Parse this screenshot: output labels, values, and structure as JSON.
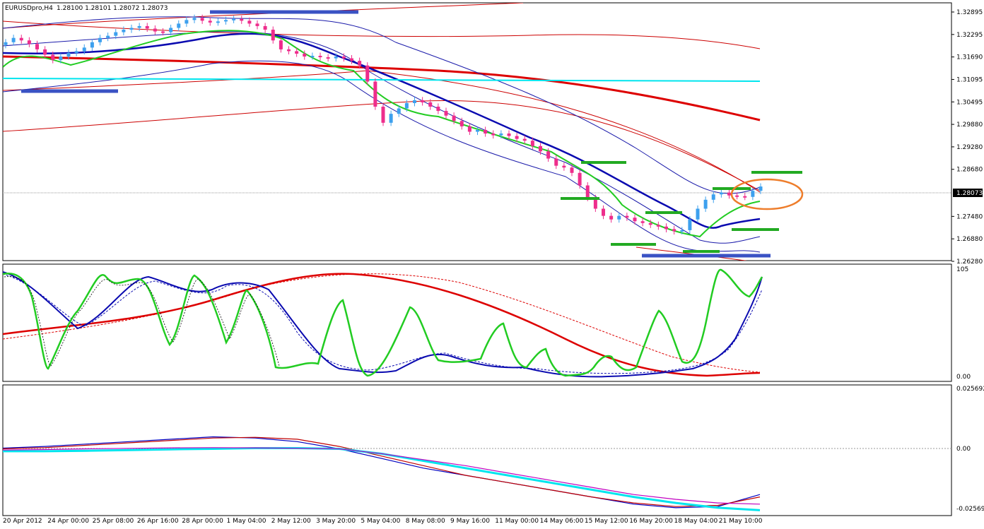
{
  "header": {
    "symbol_label": "EURUSDpro,H4",
    "ohlc": "1.28100 1.28101 1.28072 1.28073"
  },
  "chart_data": [
    {
      "type": "candlestick",
      "title": "EURUSDpro,H4",
      "ylim": [
        1.26,
        1.332
      ],
      "price_ticks": [
        "1.32895",
        "1.32295",
        "1.31690",
        "1.31095",
        "1.30495",
        "1.29880",
        "1.29280",
        "1.28680",
        "1.28073",
        "1.27480",
        "1.26880",
        "1.26280"
      ],
      "current_price": "1.28073",
      "x_labels": [
        "20 Apr 2012",
        "24 Apr 00:00",
        "25 Apr 08:00",
        "26 Apr 16:00",
        "28 Apr 00:00",
        "1 May 04:00",
        "2 May 12:00",
        "3 May 20:00",
        "5 May 04:00",
        "8 May 08:00",
        "9 May 16:00",
        "11 May 00:00",
        "14 May 06:00",
        "15 May 12:00",
        "16 May 20:00",
        "18 May 04:00",
        "21 May 10:00"
      ],
      "candle_closes": [
        1.321,
        1.3222,
        1.3215,
        1.3205,
        1.319,
        1.3175,
        1.316,
        1.317,
        1.318,
        1.3185,
        1.3195,
        1.321,
        1.3222,
        1.3228,
        1.3238,
        1.3245,
        1.325,
        1.3255,
        1.3248,
        1.324,
        1.3238,
        1.325,
        1.3262,
        1.3272,
        1.3278,
        1.327,
        1.3265,
        1.3268,
        1.3272,
        1.3275,
        1.327,
        1.3262,
        1.3255,
        1.3245,
        1.3215,
        1.319,
        1.3185,
        1.3178,
        1.317,
        1.3172,
        1.3168,
        1.3165,
        1.317,
        1.3165,
        1.3158,
        1.3145,
        1.31,
        1.303,
        1.2985,
        1.301,
        1.3025,
        1.304,
        1.3048,
        1.3042,
        1.303,
        1.3018,
        1.3005,
        1.299,
        1.2975,
        1.296,
        1.2965,
        1.2955,
        1.295,
        1.2955,
        1.2948,
        1.294,
        1.2935,
        1.292,
        1.2905,
        1.2885,
        1.2865,
        1.286,
        1.2845,
        1.281,
        1.2775,
        1.2745,
        1.2725,
        1.2715,
        1.2725,
        1.272,
        1.271,
        1.2705,
        1.27,
        1.2695,
        1.2688,
        1.2682,
        1.2685,
        1.2715,
        1.2745,
        1.277,
        1.2785,
        1.279,
        1.2782,
        1.278,
        1.2778,
        1.2795,
        1.2807
      ],
      "horizontal_lines": [
        {
          "name": "resistance-line",
          "price": 1.311,
          "color": "#00e5ee"
        }
      ]
    },
    {
      "type": "line",
      "title": "oscillator",
      "ylim": [
        0,
        105
      ],
      "scale_labels": [
        "105",
        "0.00"
      ],
      "series": [
        {
          "color": "#00c000",
          "values": [
            102,
            95,
            70,
            35,
            5,
            20,
            60,
            95,
            100,
            90,
            98,
            102,
            70,
            30,
            25,
            60,
            100,
            95,
            55,
            25,
            50,
            95,
            98,
            45,
            10,
            5,
            5,
            6,
            35,
            90,
            70,
            10,
            5,
            5,
            5,
            35,
            70,
            90,
            60,
            20,
            5,
            5,
            10,
            45,
            65,
            45,
            10,
            5,
            5,
            5,
            5,
            5,
            5,
            5,
            5,
            5,
            5,
            5,
            5,
            5,
            5,
            5,
            5,
            5,
            5,
            5,
            5,
            5,
            5,
            5,
            5,
            5,
            5,
            5,
            5,
            5,
            5,
            5,
            5,
            5,
            5,
            5,
            5,
            5,
            5,
            5,
            5,
            5,
            5,
            5,
            5,
            5,
            5,
            5,
            5,
            5,
            5,
            5,
            5,
            5,
            5,
            5,
            5
          ]
        },
        {
          "color": "#0000c0",
          "values": [
            100,
            85,
            65,
            45,
            30,
            30,
            45,
            70,
            90,
            98,
            100,
            95,
            85,
            70,
            60,
            60,
            75,
            85,
            90,
            80,
            65,
            50,
            40,
            30,
            20,
            12,
            8,
            6,
            5,
            5,
            5,
            5,
            5,
            5,
            5,
            5,
            5,
            5,
            5,
            5,
            5,
            5,
            5,
            5,
            5,
            5,
            5,
            5,
            5,
            5,
            5,
            5,
            5,
            5,
            5,
            5,
            5,
            5,
            5,
            5,
            5,
            5,
            5,
            5,
            5,
            5,
            5,
            5,
            5,
            5,
            5,
            5,
            5,
            5,
            5,
            5,
            5,
            5,
            5,
            5,
            5,
            5,
            5,
            5,
            5,
            5,
            5,
            5,
            5,
            5,
            5,
            5,
            5,
            5,
            5,
            5,
            5,
            5,
            5,
            5,
            5,
            5,
            5
          ]
        },
        {
          "color": "#e00000",
          "values": [
            50,
            55,
            60,
            70,
            80,
            90,
            100,
            105,
            105,
            100,
            90,
            75,
            60,
            45,
            30,
            20,
            10,
            5,
            3,
            3,
            5,
            5
          ]
        }
      ]
    },
    {
      "type": "line",
      "title": "momentum",
      "ylim": [
        -0.02569,
        0.025692
      ],
      "scale_labels": [
        "0.025692",
        "0.00",
        "-0.02569"
      ],
      "series": [
        {
          "color": "#0000c0",
          "values": [
            0.0003,
            0.001,
            0.002,
            0.003,
            0.004,
            0.005,
            0.0045,
            0.003,
            0.0,
            -0.004,
            -0.008,
            -0.011,
            -0.014,
            -0.017,
            -0.02,
            -0.023,
            -0.0245,
            -0.024,
            -0.019
          ]
        },
        {
          "color": "#c00000",
          "values": [
            0.0,
            0.0005,
            0.0015,
            0.0025,
            0.0035,
            0.0045,
            0.0048,
            0.004,
            0.001,
            -0.003,
            -0.007,
            -0.011,
            -0.014,
            -0.017,
            -0.02,
            -0.0225,
            -0.024,
            -0.0235,
            -0.02
          ]
        },
        {
          "color": "#00e5ee",
          "values": [
            -0.001,
            -0.001,
            -0.0008,
            -0.0005,
            -0.0002,
            0.0,
            0.0003,
            0.0003,
            0.0,
            -0.002,
            -0.005,
            -0.008,
            -0.011,
            -0.014,
            -0.017,
            -0.02,
            -0.0225,
            -0.0245,
            -0.0255
          ]
        },
        {
          "color": "#c000c0",
          "values": [
            -0.0005,
            -0.0003,
            0.0,
            0.0002,
            0.0004,
            0.0005,
            0.0004,
            0.0002,
            0.0,
            -0.002,
            -0.0045,
            -0.007,
            -0.01,
            -0.013,
            -0.016,
            -0.019,
            -0.021,
            -0.0225,
            -0.023
          ]
        }
      ]
    }
  ]
}
